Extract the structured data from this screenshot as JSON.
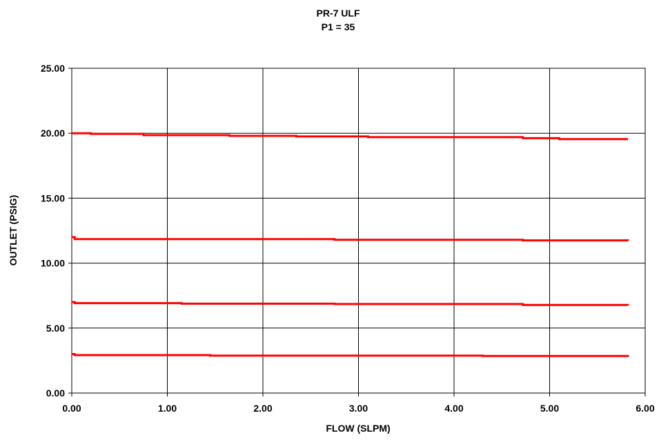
{
  "chart_data": {
    "type": "line",
    "title": [
      "PR-7 ULF",
      "P1 = 35"
    ],
    "xlabel": "FLOW (SLPM)",
    "ylabel": "OUTLET (PSIG)",
    "xlim": [
      0,
      6
    ],
    "ylim": [
      0,
      25
    ],
    "xticks": [
      "0.00",
      "1.00",
      "2.00",
      "3.00",
      "4.00",
      "5.00",
      "6.00"
    ],
    "yticks": [
      "0.00",
      "5.00",
      "10.00",
      "15.00",
      "20.00",
      "25.00"
    ],
    "grid": true,
    "line_color": "#ff0000",
    "series": [
      {
        "x": [
          0.0,
          0.02,
          0.2,
          0.75,
          1.15,
          1.65,
          2.35,
          3.1,
          4.3,
          4.72,
          5.1,
          5.82
        ],
        "y": [
          20.0,
          20.0,
          19.95,
          19.85,
          19.85,
          19.8,
          19.75,
          19.7,
          19.7,
          19.62,
          19.55,
          19.55
        ]
      },
      {
        "x": [
          0.0,
          0.03,
          1.15,
          2.75,
          4.72,
          5.82
        ],
        "y": [
          12.0,
          11.85,
          11.85,
          11.8,
          11.75,
          11.72
        ]
      },
      {
        "x": [
          0.0,
          0.03,
          1.15,
          2.75,
          4.72,
          5.82
        ],
        "y": [
          7.0,
          6.92,
          6.88,
          6.85,
          6.78,
          6.75
        ]
      },
      {
        "x": [
          0.0,
          0.03,
          1.45,
          4.3,
          5.82
        ],
        "y": [
          3.0,
          2.92,
          2.88,
          2.85,
          2.8
        ]
      }
    ]
  }
}
